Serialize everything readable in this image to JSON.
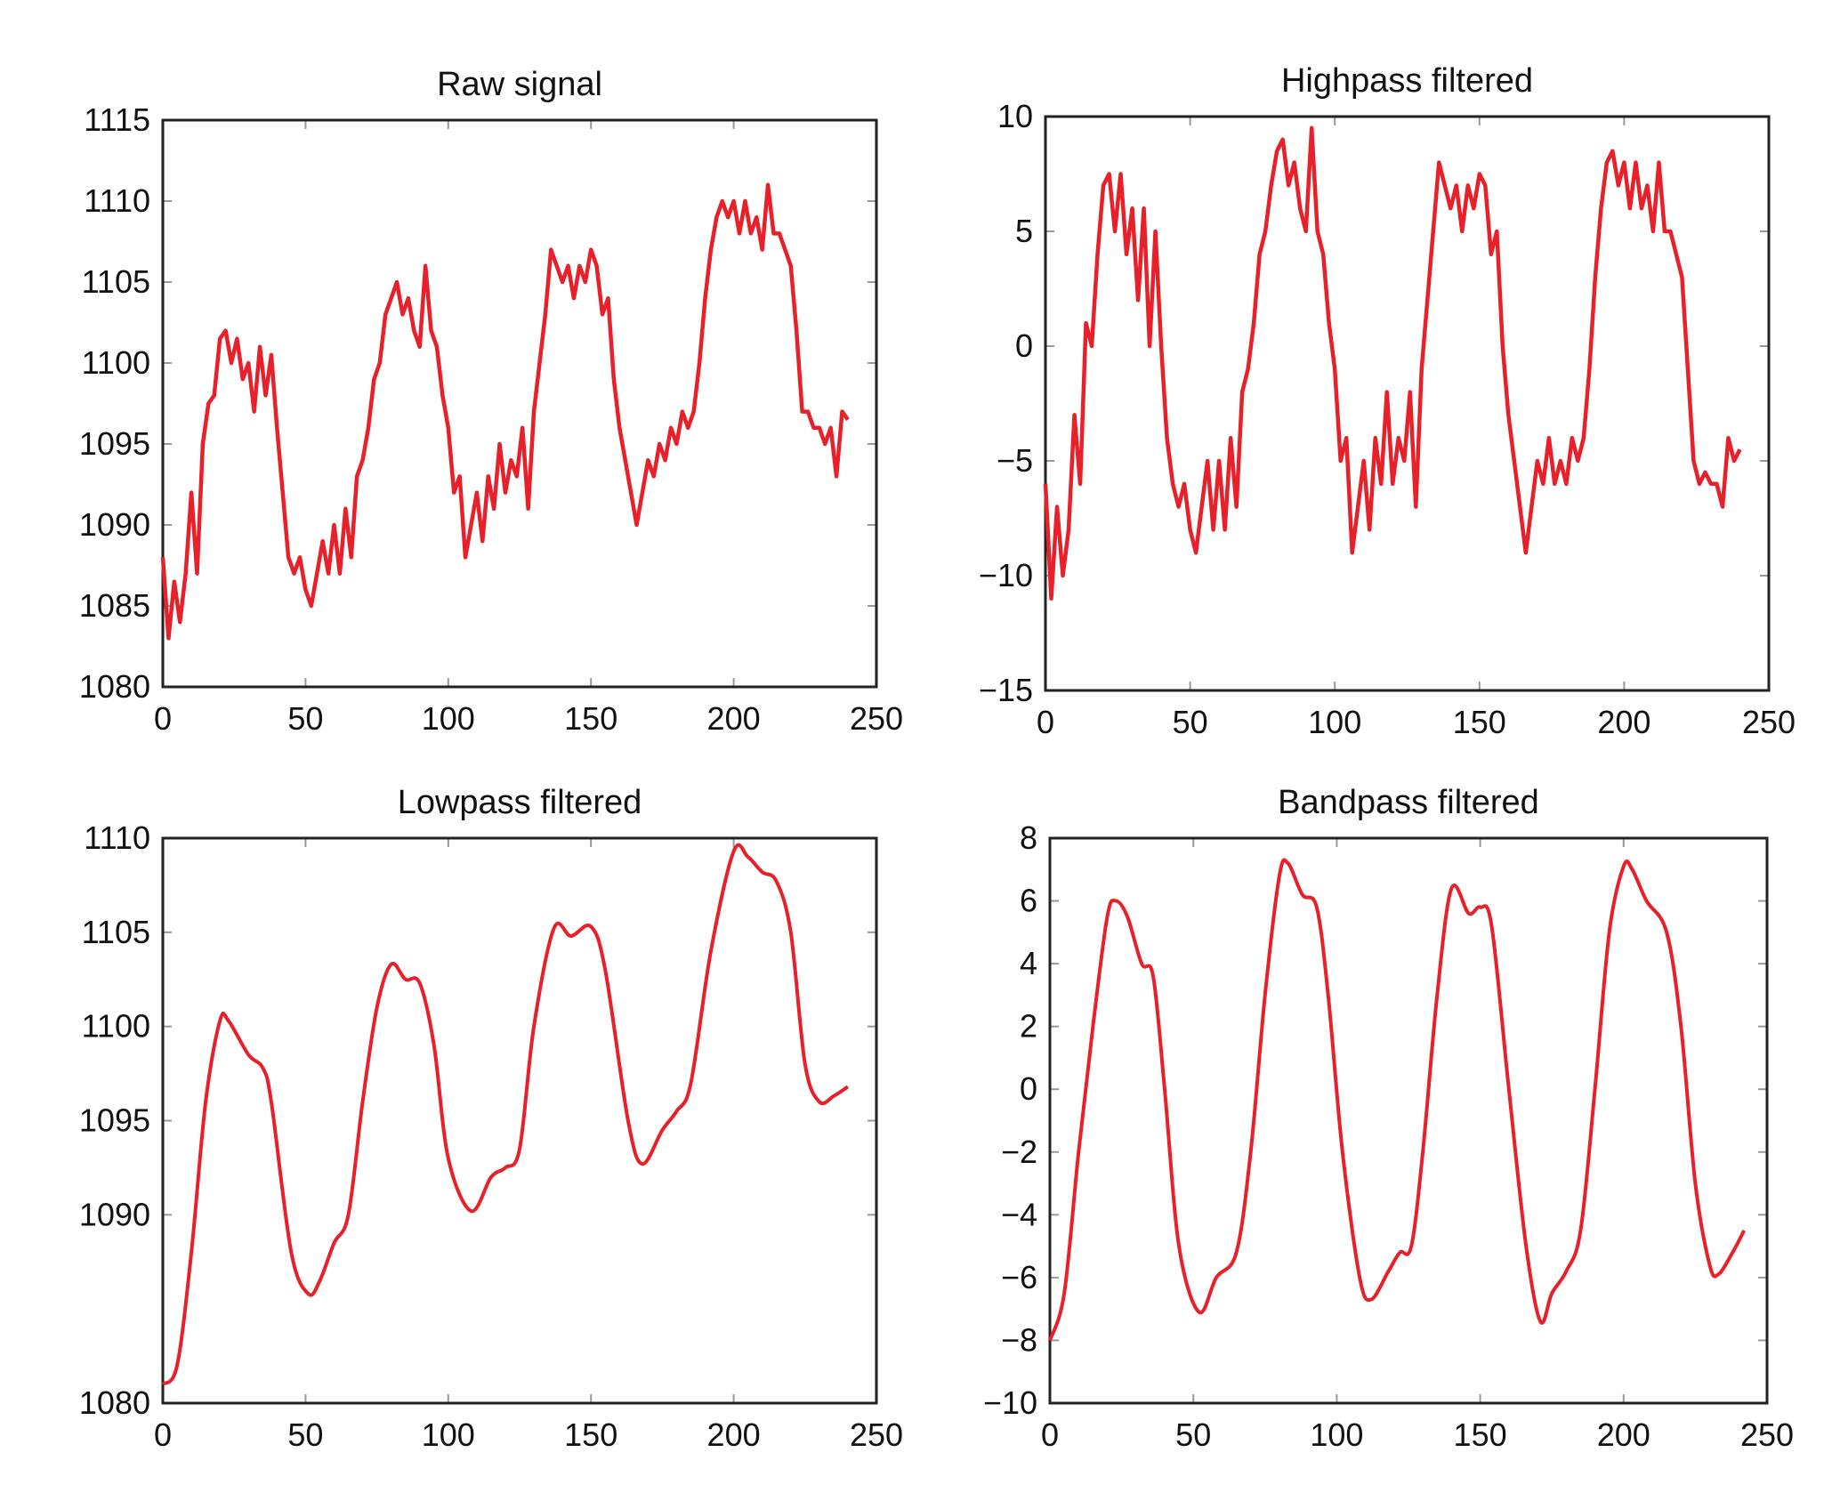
{
  "chart_data": [
    {
      "type": "line",
      "title": "Raw signal",
      "xlim": [
        0,
        250
      ],
      "ylim": [
        1080,
        1115
      ],
      "xticks": [
        0,
        50,
        100,
        150,
        200,
        250
      ],
      "yticks": [
        1080,
        1085,
        1090,
        1095,
        1100,
        1105,
        1110,
        1115
      ],
      "color": "#e8202a",
      "x_start": 0,
      "x_step": 2,
      "values": [
        1088,
        1083,
        1086.5,
        1084,
        1087,
        1092,
        1087,
        1095,
        1097.5,
        1098,
        1101.5,
        1102,
        1100,
        1101.5,
        1099,
        1100,
        1097,
        1101,
        1098,
        1100.5,
        1096,
        1092,
        1088,
        1087,
        1088,
        1086,
        1085,
        1087,
        1089,
        1087,
        1090,
        1087,
        1091,
        1088,
        1093,
        1094,
        1096,
        1099,
        1100,
        1103,
        1104,
        1105,
        1103,
        1104,
        1102,
        1101,
        1106,
        1102,
        1101,
        1098,
        1096,
        1092,
        1093,
        1088,
        1090,
        1092,
        1089,
        1093,
        1091,
        1095,
        1092,
        1094,
        1093,
        1096,
        1091,
        1097,
        1100,
        1103,
        1107,
        1106,
        1105,
        1106,
        1104,
        1106,
        1105,
        1107,
        1106,
        1103,
        1104,
        1099,
        1096,
        1094,
        1092,
        1090,
        1092,
        1094,
        1093,
        1095,
        1094,
        1096,
        1095,
        1097,
        1096,
        1097,
        1100,
        1104,
        1107,
        1109,
        1110,
        1109,
        1110,
        1108,
        1110,
        1108,
        1109,
        1107,
        1111,
        1108,
        1108,
        1107,
        1106,
        1102,
        1097,
        1097,
        1096,
        1096,
        1095,
        1096,
        1093,
        1097,
        1096.5
      ]
    },
    {
      "type": "line",
      "title": "Highpass filtered",
      "xlim": [
        0,
        250
      ],
      "ylim": [
        -15,
        10
      ],
      "xticks": [
        0,
        50,
        100,
        150,
        200,
        250
      ],
      "yticks": [
        -15,
        -10,
        -5,
        0,
        5,
        10
      ],
      "color": "#e8202a",
      "x_start": 0,
      "x_step": 2,
      "values": [
        -6,
        -11,
        -7,
        -10,
        -8,
        -3,
        -6,
        1,
        0,
        4,
        7,
        7.5,
        5,
        7.5,
        4,
        6,
        2,
        6,
        0,
        5,
        0,
        -4,
        -6,
        -7,
        -6,
        -8,
        -9,
        -7,
        -5,
        -8,
        -5,
        -8,
        -4,
        -7,
        -2,
        -1,
        1,
        4,
        5,
        7,
        8.5,
        9,
        7,
        8,
        6,
        5,
        9.5,
        5,
        4,
        1,
        -1,
        -5,
        -4,
        -9,
        -7,
        -5,
        -8,
        -4,
        -6,
        -2,
        -6,
        -4,
        -5,
        -2,
        -7,
        -1,
        2,
        5,
        8,
        7,
        6,
        7,
        5,
        7,
        6,
        7.5,
        7,
        4,
        5,
        0,
        -3,
        -5,
        -7,
        -9,
        -7,
        -5,
        -6,
        -4,
        -6,
        -5,
        -6,
        -4,
        -5,
        -4,
        -1,
        3,
        6,
        8,
        8.5,
        7,
        8,
        6,
        8,
        6,
        7,
        5,
        8,
        5,
        5,
        4,
        3,
        -1,
        -5,
        -6,
        -5.5,
        -6,
        -6,
        -7,
        -4,
        -5,
        -4.5
      ]
    },
    {
      "type": "line",
      "title": "Lowpass filtered",
      "xlim": [
        0,
        250
      ],
      "ylim": [
        1080,
        1110
      ],
      "xticks": [
        0,
        50,
        100,
        150,
        200,
        250
      ],
      "yticks": [
        1080,
        1090,
        1095,
        1100,
        1105,
        1110
      ],
      "color": "#e8202a",
      "points": [
        [
          0,
          1081
        ],
        [
          5,
          1082
        ],
        [
          10,
          1088
        ],
        [
          15,
          1096
        ],
        [
          20,
          1100.3
        ],
        [
          23,
          1100.3
        ],
        [
          30,
          1098.5
        ],
        [
          35,
          1097.8
        ],
        [
          38,
          1096
        ],
        [
          45,
          1088
        ],
        [
          51,
          1085.8
        ],
        [
          55,
          1086.5
        ],
        [
          60,
          1088.5
        ],
        [
          65,
          1090
        ],
        [
          70,
          1096
        ],
        [
          75,
          1101
        ],
        [
          80,
          1103.3
        ],
        [
          85,
          1102.5
        ],
        [
          90,
          1102.3
        ],
        [
          95,
          1099
        ],
        [
          100,
          1093
        ],
        [
          108,
          1090.2
        ],
        [
          115,
          1092
        ],
        [
          120,
          1092.5
        ],
        [
          125,
          1093.5
        ],
        [
          130,
          1100
        ],
        [
          137,
          1105.2
        ],
        [
          143,
          1104.8
        ],
        [
          150,
          1105.3
        ],
        [
          155,
          1103
        ],
        [
          163,
          1095
        ],
        [
          168,
          1092.7
        ],
        [
          175,
          1094.5
        ],
        [
          180,
          1095.5
        ],
        [
          185,
          1097
        ],
        [
          192,
          1104
        ],
        [
          200,
          1109.3
        ],
        [
          205,
          1109
        ],
        [
          210,
          1108.2
        ],
        [
          215,
          1107.7
        ],
        [
          220,
          1105
        ],
        [
          225,
          1098
        ],
        [
          230,
          1096
        ],
        [
          235,
          1096.3
        ],
        [
          240,
          1096.8
        ]
      ]
    },
    {
      "type": "line",
      "title": "Bandpass filtered",
      "xlim": [
        0,
        250
      ],
      "ylim": [
        -10,
        8
      ],
      "xticks": [
        0,
        50,
        100,
        150,
        200,
        250
      ],
      "yticks": [
        -10,
        -8,
        -6,
        -4,
        -2,
        0,
        2,
        4,
        6,
        8
      ],
      "color": "#e8202a",
      "points": [
        [
          0,
          -8
        ],
        [
          5,
          -6.5
        ],
        [
          10,
          -2
        ],
        [
          15,
          2
        ],
        [
          20,
          5.5
        ],
        [
          23,
          6
        ],
        [
          27,
          5.5
        ],
        [
          32,
          4
        ],
        [
          36,
          3.6
        ],
        [
          40,
          0
        ],
        [
          45,
          -5
        ],
        [
          52,
          -7.1
        ],
        [
          58,
          -6
        ],
        [
          65,
          -5.2
        ],
        [
          70,
          -2
        ],
        [
          75,
          3
        ],
        [
          80,
          6.8
        ],
        [
          83,
          7.2
        ],
        [
          88,
          6.2
        ],
        [
          93,
          5.8
        ],
        [
          97,
          3
        ],
        [
          102,
          -2
        ],
        [
          108,
          -6
        ],
        [
          112,
          -6.7
        ],
        [
          118,
          -5.8
        ],
        [
          122,
          -5.2
        ],
        [
          126,
          -5
        ],
        [
          130,
          -2
        ],
        [
          135,
          3
        ],
        [
          140,
          6.4
        ],
        [
          146,
          5.6
        ],
        [
          150,
          5.8
        ],
        [
          154,
          5.2
        ],
        [
          160,
          0
        ],
        [
          166,
          -5
        ],
        [
          171,
          -7.4
        ],
        [
          175,
          -6.5
        ],
        [
          180,
          -5.8
        ],
        [
          185,
          -4.5
        ],
        [
          190,
          0
        ],
        [
          195,
          5
        ],
        [
          200,
          7.1
        ],
        [
          203,
          7
        ],
        [
          208,
          6
        ],
        [
          215,
          5
        ],
        [
          220,
          2
        ],
        [
          225,
          -3
        ],
        [
          230,
          -5.6
        ],
        [
          233,
          -5.9
        ],
        [
          238,
          -5.2
        ],
        [
          242,
          -4.5
        ]
      ]
    }
  ]
}
